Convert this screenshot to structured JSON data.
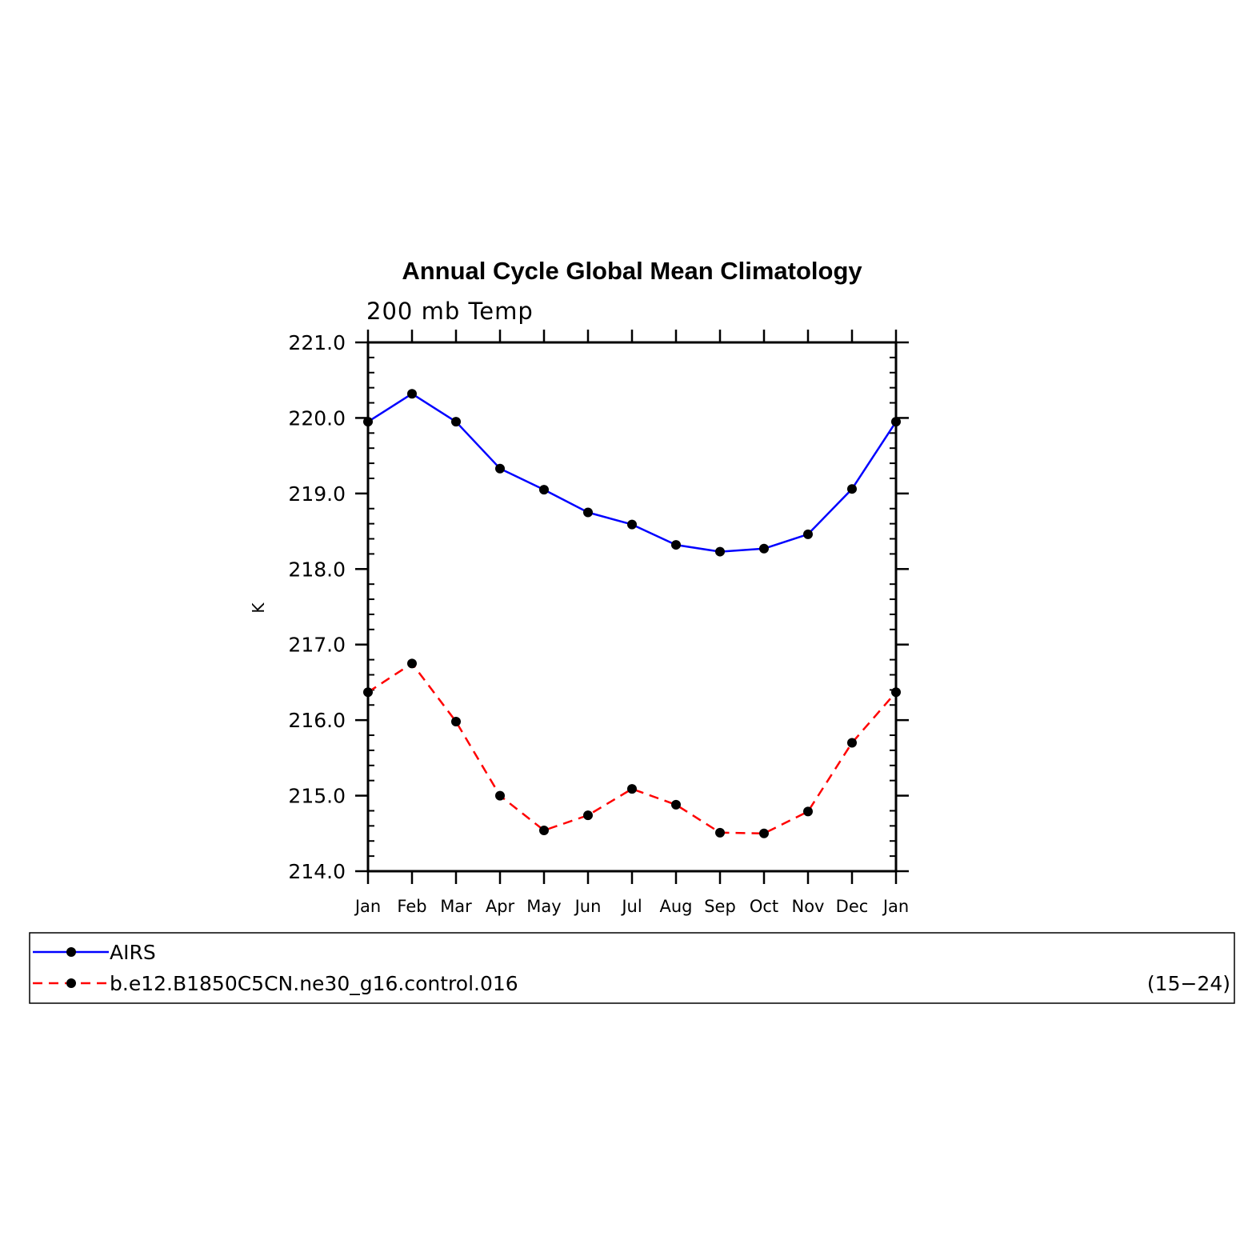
{
  "chart_data": {
    "type": "line",
    "title": "Annual Cycle Global Mean Climatology",
    "subtitle": "200 mb Temp",
    "ylabel": "K",
    "xlabel": "",
    "categories": [
      "Jan",
      "Feb",
      "Mar",
      "Apr",
      "May",
      "Jun",
      "Jul",
      "Aug",
      "Sep",
      "Oct",
      "Nov",
      "Dec",
      "Jan"
    ],
    "ylim": [
      214.0,
      221.0
    ],
    "yticks": [
      "214.0",
      "215.0",
      "216.0",
      "217.0",
      "218.0",
      "219.0",
      "220.0",
      "221.0"
    ],
    "y_minor_step": 0.2,
    "grid": false,
    "legend_placement": "bottom",
    "series": [
      {
        "name": "AIRS",
        "color": "#0000ff",
        "dash": "solid",
        "marker": "filled-circle",
        "values": [
          219.95,
          220.32,
          219.95,
          219.33,
          219.05,
          218.75,
          218.59,
          218.32,
          218.23,
          218.27,
          218.46,
          219.06,
          219.95
        ]
      },
      {
        "name": "b.e12.B1850C5CN.ne30_g16.control.016",
        "color": "#ff0000",
        "dash": "dashed",
        "marker": "filled-circle",
        "values": [
          216.37,
          216.75,
          215.98,
          215.0,
          214.54,
          214.74,
          215.09,
          214.88,
          214.51,
          214.5,
          214.79,
          215.7,
          216.37
        ]
      }
    ],
    "legend_note": "(15−24)"
  }
}
